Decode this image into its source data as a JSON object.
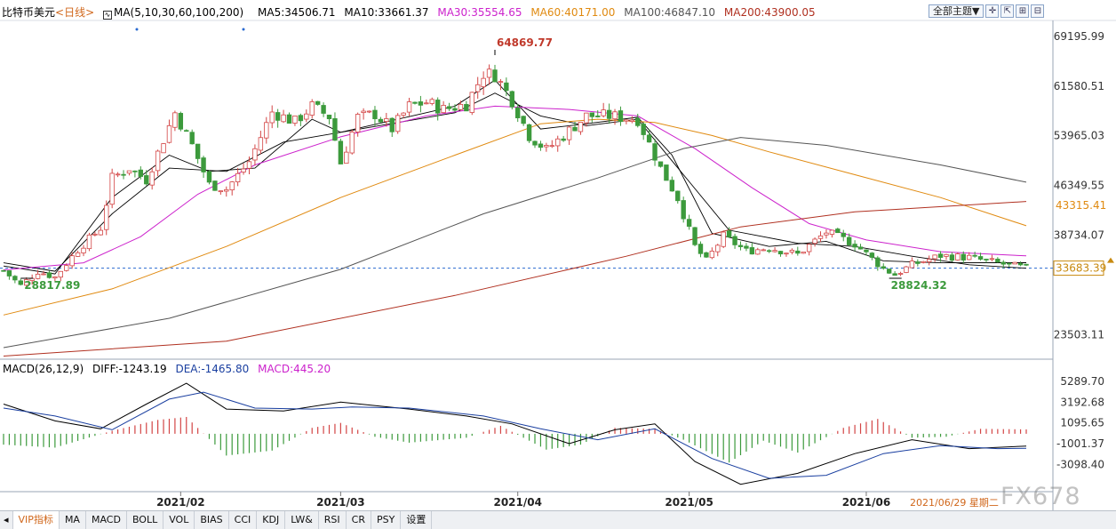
{
  "header": {
    "symbol": "比特币美元",
    "period": "<日线>",
    "ma_set": "MA(5,10,30,60,100,200)",
    "ma5": "MA5:34506.71",
    "ma10": "MA10:33661.37",
    "ma30": "MA30:35554.65",
    "ma60": "MA60:40171.00",
    "ma100": "MA100:46847.10",
    "ma200": "MA200:43900.05"
  },
  "toolbar": {
    "theme_label": "全部主题▼",
    "icons": [
      "crosshair-icon",
      "expand-icon",
      "shrink-icon",
      "zoom-out-icon"
    ]
  },
  "macd_header": {
    "name": "MACD(26,12,9)",
    "diff": "DIFF:-1243.19",
    "dea": "DEA:-1465.80",
    "macd": "MACD:445.20"
  },
  "colors": {
    "up": "#d34545",
    "down": "#3c9a3c",
    "ma5": "#000000",
    "ma10": "#000000",
    "ma30": "#cc22cc",
    "ma60": "#e08a10",
    "ma100": "#555555",
    "ma200": "#b03020",
    "price_line": "#2a6ad0",
    "axis_label": "#333333",
    "ma60_tag": "#e08a10",
    "last_price_tag": "#c88a10"
  },
  "chart_data": [
    {
      "type": "candlestick",
      "title": "",
      "y_ticks": [
        "69195.99",
        "61580.51",
        "53965.03",
        "46349.55",
        "38734.07",
        "23503.11"
      ],
      "y_tick_values": [
        69195.99,
        61580.51,
        53965.03,
        46349.55,
        38734.07,
        23503.11
      ],
      "ylim": [
        20000,
        71500
      ],
      "x_ticks": [
        "2021/02",
        "2021/03",
        "2021/04",
        "2021/05",
        "2021/06"
      ],
      "x_tick_days": [
        32,
        60,
        91,
        121,
        152
      ],
      "x_range_days": [
        1,
        180
      ],
      "annotations": {
        "high": "64869.77",
        "high_day": 87,
        "low_left": "28817.89",
        "low_left_day": 4,
        "low_right": "28824.32",
        "low_right_day": 156
      },
      "last_price": "33683.39",
      "last_price_value": 33683.39,
      "ma60_tag": "43315.41",
      "ma60_tag_value": 43315.41,
      "close_path": [
        [
          1,
          33300
        ],
        [
          4,
          31000
        ],
        [
          7,
          33200
        ],
        [
          10,
          32300
        ],
        [
          14,
          36500
        ],
        [
          18,
          39800
        ],
        [
          20,
          47500
        ],
        [
          23,
          49000
        ],
        [
          26,
          47200
        ],
        [
          31,
          57500
        ],
        [
          34,
          52500
        ],
        [
          37,
          46500
        ],
        [
          40,
          45800
        ],
        [
          44,
          50000
        ],
        [
          48,
          57600
        ],
        [
          52,
          56100
        ],
        [
          55,
          58500
        ],
        [
          58,
          56900
        ],
        [
          60,
          49800
        ],
        [
          63,
          56800
        ],
        [
          66,
          57300
        ],
        [
          69,
          55000
        ],
        [
          72,
          58500
        ],
        [
          75,
          59100
        ],
        [
          78,
          58000
        ],
        [
          82,
          58800
        ],
        [
          85,
          63500
        ],
        [
          87,
          63300
        ],
        [
          90,
          59400
        ],
        [
          93,
          54000
        ],
        [
          96,
          51800
        ],
        [
          99,
          54000
        ],
        [
          103,
          57000
        ],
        [
          107,
          57000
        ],
        [
          112,
          56500
        ],
        [
          116,
          49000
        ],
        [
          119,
          44400
        ],
        [
          122,
          37000
        ],
        [
          124,
          34800
        ],
        [
          127,
          38600
        ],
        [
          131,
          36300
        ],
        [
          135,
          36800
        ],
        [
          140,
          35800
        ],
        [
          145,
          39200
        ],
        [
          150,
          37400
        ],
        [
          155,
          33600
        ],
        [
          157,
          32700
        ],
        [
          160,
          34200
        ],
        [
          165,
          35600
        ],
        [
          170,
          35300
        ],
        [
          176,
          34300
        ],
        [
          180,
          33683
        ]
      ],
      "ma_series": [
        {
          "name": "MA5",
          "path": [
            [
              1,
              34000
            ],
            [
              10,
              32800
            ],
            [
              20,
              44500
            ],
            [
              30,
              51000
            ],
            [
              37,
              48500
            ],
            [
              45,
              49000
            ],
            [
              55,
              56500
            ],
            [
              60,
              54500
            ],
            [
              70,
              56500
            ],
            [
              80,
              58500
            ],
            [
              87,
              62500
            ],
            [
              95,
              55000
            ],
            [
              103,
              55800
            ],
            [
              112,
              56800
            ],
            [
              118,
              51000
            ],
            [
              125,
              39000
            ],
            [
              135,
              37000
            ],
            [
              145,
              37800
            ],
            [
              155,
              34800
            ],
            [
              165,
              34500
            ],
            [
              180,
              34506
            ]
          ]
        },
        {
          "name": "MA10",
          "path": [
            [
              1,
              34500
            ],
            [
              10,
              33200
            ],
            [
              20,
              42000
            ],
            [
              30,
              49000
            ],
            [
              40,
              48500
            ],
            [
              50,
              53000
            ],
            [
              60,
              54500
            ],
            [
              70,
              56000
            ],
            [
              80,
              57500
            ],
            [
              87,
              60500
            ],
            [
              95,
              57000
            ],
            [
              103,
              55500
            ],
            [
              112,
              56500
            ],
            [
              120,
              48000
            ],
            [
              128,
              39500
            ],
            [
              140,
              37500
            ],
            [
              150,
              37000
            ],
            [
              160,
              35500
            ],
            [
              170,
              34200
            ],
            [
              180,
              33661
            ]
          ]
        },
        {
          "name": "MA30",
          "path": [
            [
              1,
              33400
            ],
            [
              15,
              34500
            ],
            [
              25,
              38500
            ],
            [
              35,
              45000
            ],
            [
              45,
              49500
            ],
            [
              60,
              53800
            ],
            [
              75,
              57000
            ],
            [
              87,
              58500
            ],
            [
              100,
              58000
            ],
            [
              112,
              57000
            ],
            [
              122,
              52000
            ],
            [
              132,
              46000
            ],
            [
              142,
              40500
            ],
            [
              152,
              38000
            ],
            [
              165,
              36200
            ],
            [
              180,
              35554
            ]
          ]
        },
        {
          "name": "MA60",
          "path": [
            [
              1,
              26500
            ],
            [
              20,
              30500
            ],
            [
              40,
              37000
            ],
            [
              60,
              44500
            ],
            [
              80,
              51000
            ],
            [
              95,
              55800
            ],
            [
              105,
              56500
            ],
            [
              115,
              56000
            ],
            [
              125,
              54000
            ],
            [
              135,
              51500
            ],
            [
              150,
              48000
            ],
            [
              165,
              44500
            ],
            [
              180,
              40171
            ]
          ]
        },
        {
          "name": "MA100",
          "path": [
            [
              1,
              21500
            ],
            [
              30,
              26000
            ],
            [
              60,
              33500
            ],
            [
              85,
              42000
            ],
            [
              105,
              47500
            ],
            [
              120,
              52000
            ],
            [
              130,
              53700
            ],
            [
              145,
              52500
            ],
            [
              165,
              49500
            ],
            [
              180,
              46847
            ]
          ]
        },
        {
          "name": "MA200",
          "path": [
            [
              1,
              20200
            ],
            [
              40,
              22500
            ],
            [
              80,
              29500
            ],
            [
              110,
              35500
            ],
            [
              130,
              40000
            ],
            [
              150,
              42300
            ],
            [
              180,
              43900
            ]
          ]
        }
      ]
    },
    {
      "type": "macd",
      "title": "",
      "y_ticks": [
        "5289.70",
        "3192.68",
        "1095.65",
        "-1001.37",
        "-3098.40"
      ],
      "y_tick_values": [
        5289.7,
        3192.68,
        1095.65,
        -1001.37,
        -3098.4
      ],
      "ylim": [
        -5400,
        6100
      ],
      "diff_path": [
        [
          1,
          3000
        ],
        [
          10,
          1300
        ],
        [
          18,
          500
        ],
        [
          26,
          3000
        ],
        [
          33,
          5100
        ],
        [
          40,
          2500
        ],
        [
          50,
          2300
        ],
        [
          60,
          3200
        ],
        [
          72,
          2500
        ],
        [
          82,
          1800
        ],
        [
          90,
          1000
        ],
        [
          100,
          -1000
        ],
        [
          108,
          400
        ],
        [
          115,
          1000
        ],
        [
          122,
          -2800
        ],
        [
          130,
          -5100
        ],
        [
          140,
          -4000
        ],
        [
          150,
          -2000
        ],
        [
          160,
          -600
        ],
        [
          170,
          -1500
        ],
        [
          180,
          -1243
        ]
      ],
      "dea_path": [
        [
          1,
          2600
        ],
        [
          10,
          1800
        ],
        [
          20,
          400
        ],
        [
          30,
          3500
        ],
        [
          36,
          4200
        ],
        [
          45,
          2600
        ],
        [
          55,
          2500
        ],
        [
          62,
          2700
        ],
        [
          72,
          2600
        ],
        [
          85,
          1800
        ],
        [
          95,
          500
        ],
        [
          105,
          -600
        ],
        [
          115,
          500
        ],
        [
          125,
          -2500
        ],
        [
          135,
          -4500
        ],
        [
          145,
          -4200
        ],
        [
          155,
          -2000
        ],
        [
          165,
          -1200
        ],
        [
          175,
          -1500
        ],
        [
          180,
          -1465
        ]
      ],
      "hist_path": [
        [
          1,
          -1100
        ],
        [
          10,
          -1400
        ],
        [
          20,
          300
        ],
        [
          28,
          1400
        ],
        [
          33,
          1700
        ],
        [
          40,
          -2200
        ],
        [
          48,
          -1700
        ],
        [
          55,
          600
        ],
        [
          60,
          1100
        ],
        [
          66,
          -300
        ],
        [
          72,
          -900
        ],
        [
          82,
          -400
        ],
        [
          88,
          800
        ],
        [
          96,
          -1600
        ],
        [
          102,
          -1100
        ],
        [
          108,
          600
        ],
        [
          115,
          500
        ],
        [
          120,
          -600
        ],
        [
          128,
          -2900
        ],
        [
          134,
          -700
        ],
        [
          140,
          -1900
        ],
        [
          148,
          600
        ],
        [
          154,
          1500
        ],
        [
          160,
          -400
        ],
        [
          166,
          -300
        ],
        [
          172,
          500
        ],
        [
          180,
          445
        ]
      ]
    }
  ],
  "bottom_tabs": [
    "VIP指标",
    "MA",
    "MACD",
    "BOLL",
    "VOL",
    "BIAS",
    "CCI",
    "KDJ",
    "LW&",
    "RSI",
    "CR",
    "PSY",
    "设置"
  ],
  "date_readout": "2021/06/29 星期二",
  "watermark": "FX678"
}
